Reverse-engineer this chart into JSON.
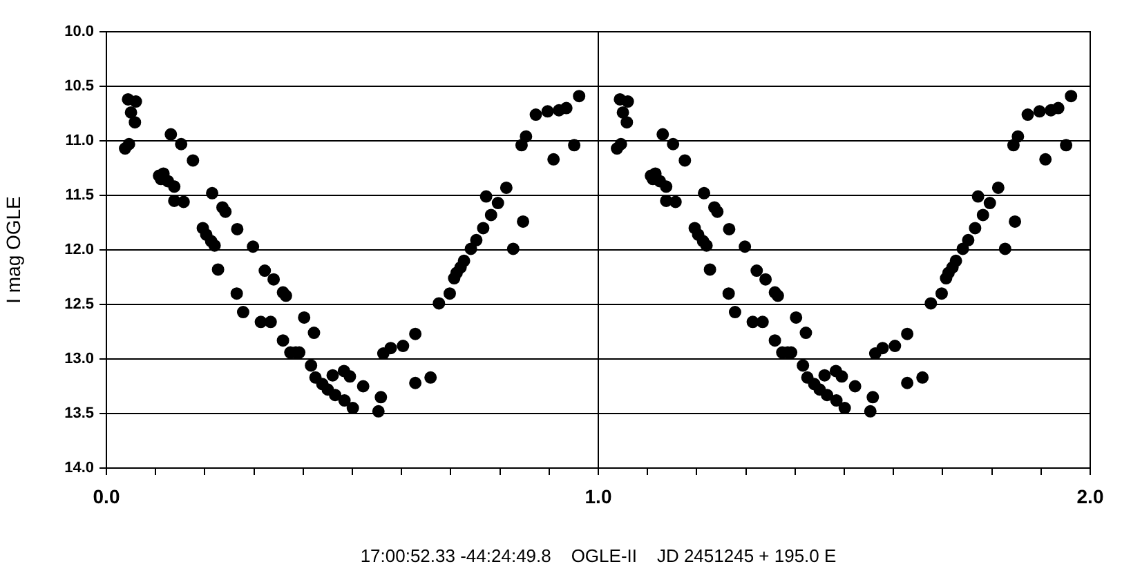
{
  "chart_data": {
    "type": "scatter",
    "xlabel": "17:00:52.33 -44:24:49.8    OGLE-II    JD 2451245 + 195.0 E",
    "ylabel": "I mag OGLE",
    "xlim": [
      0,
      2
    ],
    "xticks": [
      {
        "value": 0,
        "label": "0.0"
      },
      {
        "value": 0.1,
        "label": null
      },
      {
        "value": 0.2,
        "label": null
      },
      {
        "value": 0.3,
        "label": null
      },
      {
        "value": 0.4,
        "label": null
      },
      {
        "value": 0.5,
        "label": null
      },
      {
        "value": 0.6,
        "label": null
      },
      {
        "value": 0.7,
        "label": null
      },
      {
        "value": 0.8,
        "label": null
      },
      {
        "value": 0.9,
        "label": null
      },
      {
        "value": 1,
        "label": "1.0"
      },
      {
        "value": 1.1,
        "label": null
      },
      {
        "value": 1.2,
        "label": null
      },
      {
        "value": 1.3,
        "label": null
      },
      {
        "value": 1.4,
        "label": null
      },
      {
        "value": 1.5,
        "label": null
      },
      {
        "value": 1.6,
        "label": null
      },
      {
        "value": 1.7,
        "label": null
      },
      {
        "value": 1.8,
        "label": null
      },
      {
        "value": 1.9,
        "label": null
      },
      {
        "value": 2,
        "label": "2.0"
      }
    ],
    "ylim": [
      14,
      10
    ],
    "yticks": [
      {
        "value": 14,
        "label": "14.0"
      },
      {
        "value": 13.5,
        "label": "13.5"
      },
      {
        "value": 13,
        "label": "13.0"
      },
      {
        "value": 12.5,
        "label": "12.5"
      },
      {
        "value": 12,
        "label": "12.0"
      },
      {
        "value": 11.5,
        "label": "11.5"
      },
      {
        "value": 11,
        "label": "11.0"
      },
      {
        "value": 10.5,
        "label": "10.5"
      },
      {
        "value": 10,
        "label": "10.0"
      }
    ],
    "grid": true,
    "marker": "circle",
    "series": [
      {
        "color": "#000000",
        "x": [
          0.044,
          0.06,
          0.05,
          0.058,
          0.038,
          0.046,
          0.131,
          0.152,
          0.176,
          0.107,
          0.116,
          0.111,
          0.125,
          0.138,
          0.138,
          0.157,
          0.215,
          0.236,
          0.242,
          0.196,
          0.203,
          0.213,
          0.22,
          0.266,
          0.298,
          0.227,
          0.322,
          0.34,
          0.265,
          0.359,
          0.365,
          0.278,
          0.314,
          0.334,
          0.402,
          0.422,
          0.359,
          0.374,
          0.385,
          0.392,
          0.416,
          0.425,
          0.439,
          0.45,
          0.465,
          0.46,
          0.483,
          0.484,
          0.495,
          0.501,
          0.522,
          0.553,
          0.558,
          0.563,
          0.578,
          0.603,
          0.628,
          0.628,
          0.659,
          0.676,
          0.698,
          0.707,
          0.712,
          0.72,
          0.727,
          0.741,
          0.752,
          0.766,
          0.782,
          0.772,
          0.796,
          0.813,
          0.827,
          0.847,
          0.844,
          0.853,
          0.873,
          0.897,
          0.92,
          0.935,
          0.961,
          0.909,
          0.951,
          1.044,
          1.06,
          1.05,
          1.058,
          1.038,
          1.046,
          1.131,
          1.152,
          1.176,
          1.107,
          1.116,
          1.111,
          1.125,
          1.138,
          1.138,
          1.157,
          1.215,
          1.236,
          1.242,
          1.196,
          1.203,
          1.213,
          1.22,
          1.266,
          1.298,
          1.227,
          1.322,
          1.34,
          1.265,
          1.359,
          1.365,
          1.278,
          1.314,
          1.334,
          1.402,
          1.422,
          1.359,
          1.374,
          1.385,
          1.392,
          1.416,
          1.425,
          1.439,
          1.45,
          1.465,
          1.46,
          1.483,
          1.484,
          1.495,
          1.501,
          1.522,
          1.553,
          1.558,
          1.563,
          1.578,
          1.603,
          1.628,
          1.628,
          1.659,
          1.676,
          1.698,
          1.707,
          1.712,
          1.72,
          1.727,
          1.741,
          1.752,
          1.766,
          1.782,
          1.772,
          1.796,
          1.813,
          1.827,
          1.847,
          1.844,
          1.853,
          1.873,
          1.897,
          1.92,
          1.935,
          1.961,
          1.909,
          1.951
        ],
        "values": [
          10.62,
          10.64,
          10.74,
          10.83,
          11.07,
          11.03,
          10.94,
          11.03,
          11.18,
          11.32,
          11.3,
          11.35,
          11.37,
          11.42,
          11.55,
          11.56,
          11.48,
          11.61,
          11.65,
          11.8,
          11.86,
          11.92,
          11.96,
          11.81,
          11.97,
          12.18,
          12.19,
          12.27,
          12.4,
          12.39,
          12.42,
          12.57,
          12.66,
          12.66,
          12.62,
          12.76,
          12.83,
          12.94,
          12.94,
          12.94,
          13.06,
          13.17,
          13.23,
          13.28,
          13.33,
          13.15,
          13.11,
          13.38,
          13.16,
          13.45,
          13.25,
          13.48,
          13.35,
          12.95,
          12.9,
          12.88,
          12.77,
          13.22,
          13.17,
          12.49,
          12.4,
          12.26,
          12.21,
          12.16,
          12.1,
          11.99,
          11.91,
          11.8,
          11.68,
          11.51,
          11.57,
          11.43,
          11.99,
          11.74,
          11.04,
          10.96,
          10.76,
          10.73,
          10.72,
          10.7,
          10.59,
          11.17,
          11.04,
          10.62,
          10.64,
          10.74,
          10.83,
          11.07,
          11.03,
          10.94,
          11.03,
          11.18,
          11.32,
          11.3,
          11.35,
          11.37,
          11.42,
          11.55,
          11.56,
          11.48,
          11.61,
          11.65,
          11.8,
          11.86,
          11.92,
          11.96,
          11.81,
          11.97,
          12.18,
          12.19,
          12.27,
          12.4,
          12.39,
          12.42,
          12.57,
          12.66,
          12.66,
          12.62,
          12.76,
          12.83,
          12.94,
          12.94,
          12.94,
          13.06,
          13.17,
          13.23,
          13.28,
          13.33,
          13.15,
          13.11,
          13.38,
          13.16,
          13.45,
          13.25,
          13.48,
          13.35,
          12.95,
          12.9,
          12.88,
          12.77,
          13.22,
          13.17,
          12.49,
          12.4,
          12.26,
          12.21,
          12.16,
          12.1,
          11.99,
          11.91,
          11.8,
          11.68,
          11.51,
          11.57,
          11.43,
          11.99,
          11.74,
          11.04,
          10.96,
          10.76,
          10.73,
          10.72,
          10.7,
          10.59,
          11.17,
          11.04
        ]
      }
    ]
  }
}
